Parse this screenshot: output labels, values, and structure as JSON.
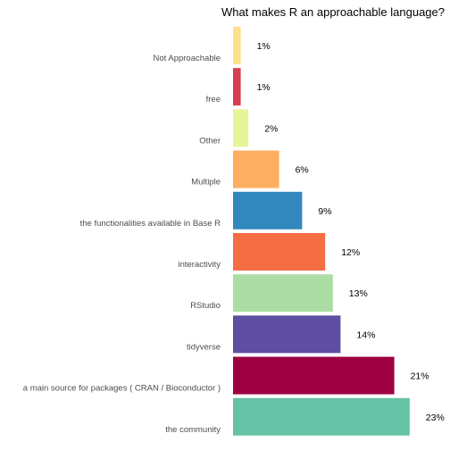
{
  "chart_data": {
    "type": "bar",
    "orientation": "horizontal",
    "title": "What makes R an approachable language?",
    "xlabel": "",
    "ylabel": "",
    "grid": false,
    "legend": "none",
    "xlim": [
      0,
      25
    ],
    "categories": [
      "Not Approachable",
      "free",
      "Other",
      "Multiple",
      "the functionalities available in Base R",
      "interactivity",
      "RStudio",
      "tidyverse",
      "a main source for packages ( CRAN / Bioconductor )",
      "the community"
    ],
    "values": [
      1,
      1,
      2,
      6,
      9,
      12,
      13,
      14,
      21,
      23
    ],
    "value_labels": [
      "1%",
      "1%",
      "2%",
      "6%",
      "9%",
      "12%",
      "13%",
      "14%",
      "21%",
      "23%"
    ],
    "colors": [
      "#fee08b",
      "#d53e4f",
      "#e6f598",
      "#fdae61",
      "#3288bd",
      "#f46d43",
      "#abdda4",
      "#5e4fa2",
      "#9e0142",
      "#66c2a5"
    ]
  }
}
